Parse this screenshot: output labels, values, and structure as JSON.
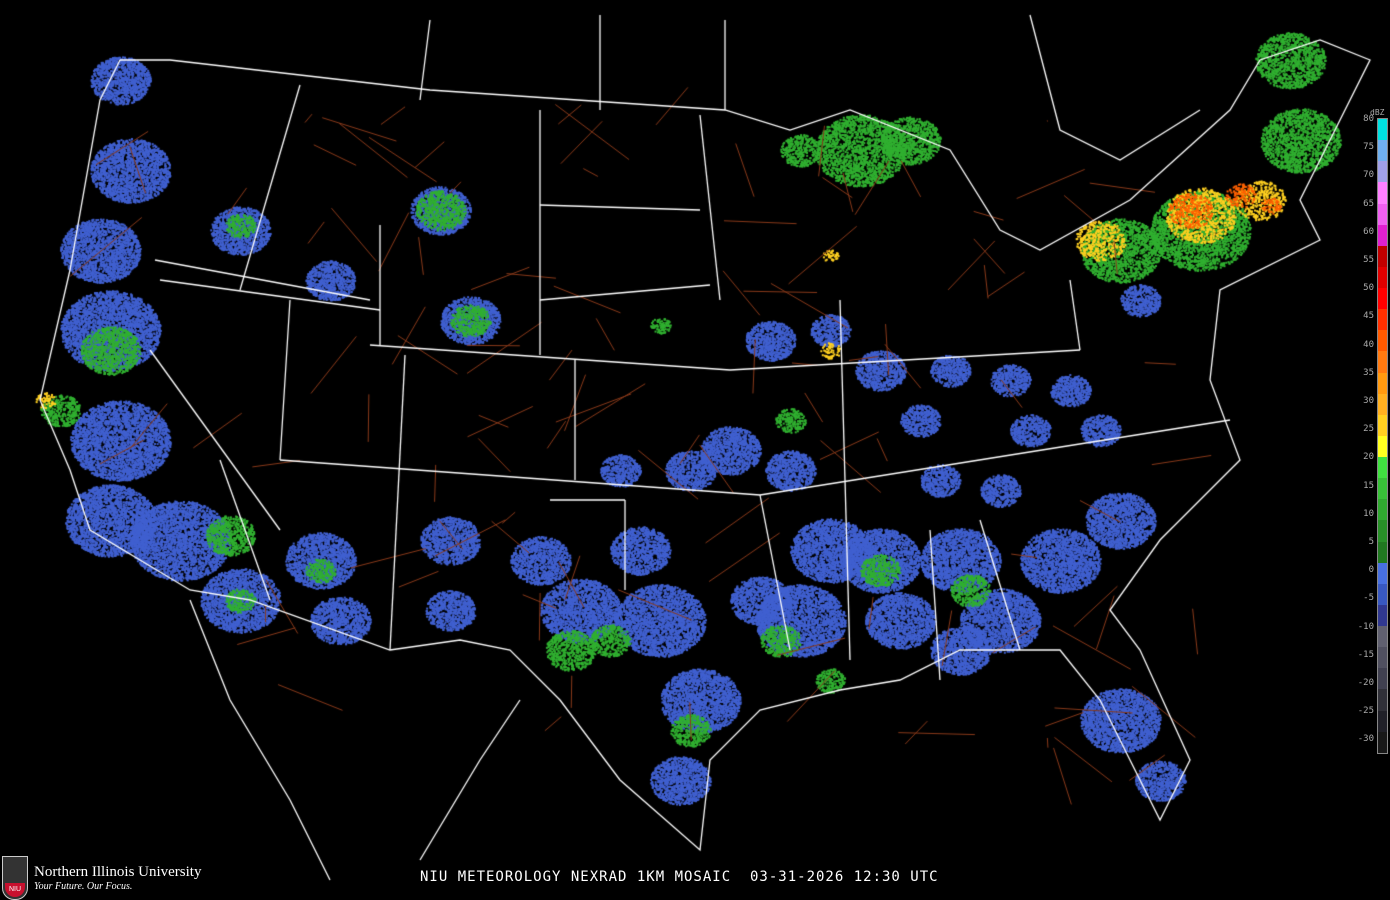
{
  "caption": "NIU METEOROLOGY NEXRAD 1KM MOSAIC  03-31-2026 12:30 UTC",
  "logo": {
    "name": "Northern Illinois University",
    "tagline": "Your Future. Our Focus.",
    "mark": "NIU"
  },
  "legend": {
    "unit": "dBZ",
    "labels": [
      "80",
      "75",
      "70",
      "65",
      "60",
      "55",
      "50",
      "45",
      "40",
      "35",
      "30",
      "25",
      "20",
      "15",
      "10",
      "5",
      "0",
      "-5",
      "-10",
      "-15",
      "-20",
      "-25",
      "-30"
    ],
    "colors": [
      "#00e0e0",
      "#70b0f0",
      "#a0a0e8",
      "#ff80ff",
      "#f060f0",
      "#e020d0",
      "#c00000",
      "#e00000",
      "#ff0000",
      "#ff3000",
      "#ff5a00",
      "#ff7a10",
      "#ff9a10",
      "#ffb020",
      "#ffd020",
      "#ffff20",
      "#40e040",
      "#38c038",
      "#30a830",
      "#289028",
      "#207820",
      "#4870e0",
      "#3858c0",
      "#303890",
      "#606070",
      "#505060",
      "#404050",
      "#303038",
      "#202028",
      "#181818"
    ]
  },
  "colors": {
    "background": "#000000",
    "borders": "#ffffff",
    "highways": "#8b3a1a",
    "light": "#4060d0",
    "moderate": "#30b030",
    "heavy": "#ffd020",
    "intense": "#ff6000"
  }
}
